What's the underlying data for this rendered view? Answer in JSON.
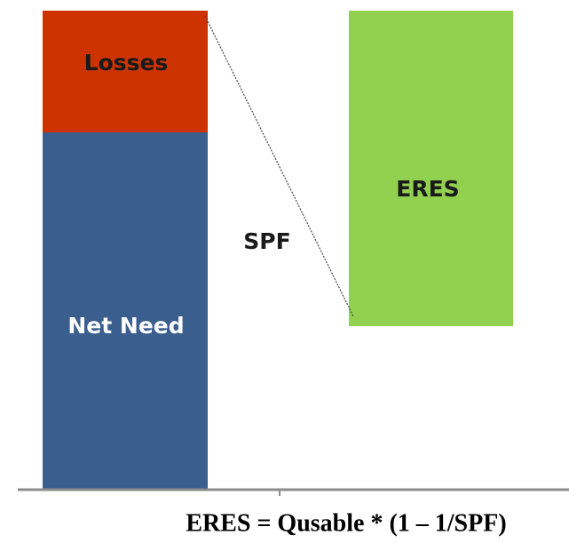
{
  "blocks": {
    "losses": "Losses",
    "net_need": "Net Need",
    "eres": "ERES"
  },
  "connector_label": "SPF",
  "formula": "ERES = Qusable * (1 – 1/SPF)"
}
